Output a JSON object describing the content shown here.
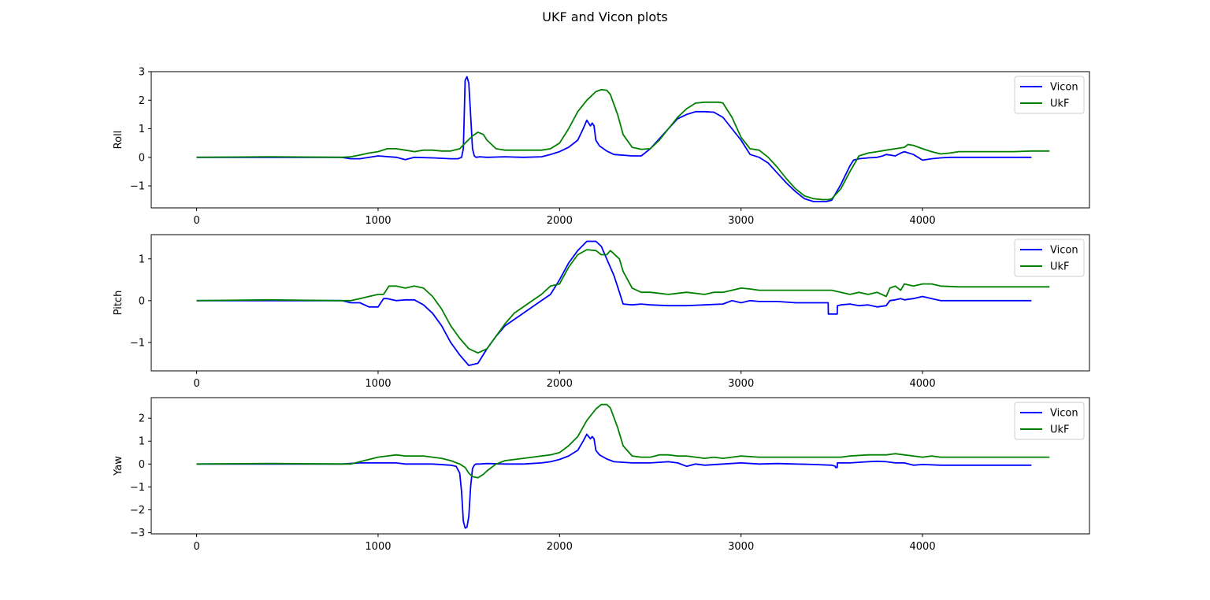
{
  "figure": {
    "title": "UKF and Vicon plots",
    "colors": {
      "Vicon": "#0000ff",
      "UkF": "#008000"
    }
  },
  "chart_data": [
    {
      "type": "line",
      "ylabel": "Roll",
      "xlim": [
        -250,
        4920
      ],
      "ylim": [
        -1.77,
        3.0
      ],
      "xticks": [
        "0",
        "1000",
        "2000",
        "3000",
        "4000"
      ],
      "yticks": [
        "−1",
        "0",
        "1",
        "2",
        "3"
      ],
      "legend": {
        "position": "upper right",
        "entries": [
          "Vicon",
          "UkF"
        ]
      },
      "series": [
        {
          "name": "Vicon",
          "color": "#0000ff",
          "x": [
            0,
            400,
            800,
            850,
            900,
            1000,
            1100,
            1150,
            1200,
            1300,
            1400,
            1440,
            1460,
            1470,
            1480,
            1490,
            1500,
            1510,
            1520,
            1530,
            1540,
            1560,
            1600,
            1700,
            1800,
            1900,
            1950,
            2000,
            2050,
            2100,
            2130,
            2150,
            2170,
            2180,
            2190,
            2200,
            2220,
            2260,
            2300,
            2400,
            2450,
            2500,
            2550,
            2600,
            2650,
            2700,
            2750,
            2800,
            2850,
            2900,
            2950,
            3000,
            3050,
            3100,
            3150,
            3200,
            3250,
            3300,
            3350,
            3400,
            3450,
            3470,
            3500,
            3550,
            3600,
            3620,
            3650,
            3700,
            3750,
            3780,
            3800,
            3850,
            3880,
            3900,
            3950,
            4000,
            4050,
            4100,
            4150,
            4200,
            4300,
            4400,
            4500,
            4600
          ],
          "y": [
            0,
            0,
            0,
            -0.05,
            -0.05,
            0.05,
            0,
            -0.08,
            0,
            -0.02,
            -0.05,
            -0.05,
            0,
            0.3,
            2.7,
            2.82,
            2.6,
            1.5,
            0.3,
            0.05,
            0,
            0.02,
            0,
            0.02,
            0,
            0.02,
            0.1,
            0.2,
            0.35,
            0.6,
            1.0,
            1.3,
            1.1,
            1.2,
            1.1,
            0.6,
            0.4,
            0.22,
            0.1,
            0.05,
            0.05,
            0.3,
            0.65,
            1.0,
            1.35,
            1.5,
            1.6,
            1.6,
            1.58,
            1.4,
            1.0,
            0.6,
            0.1,
            0.0,
            -0.2,
            -0.55,
            -0.9,
            -1.2,
            -1.45,
            -1.55,
            -1.55,
            -1.55,
            -1.5,
            -0.95,
            -0.3,
            -0.1,
            -0.05,
            -0.02,
            0.0,
            0.05,
            0.1,
            0.05,
            0.15,
            0.2,
            0.1,
            -0.1,
            -0.05,
            -0.02,
            0,
            0,
            0,
            0,
            0,
            0
          ]
        },
        {
          "name": "UkF",
          "color": "#008000",
          "x": [
            0,
            400,
            800,
            850,
            900,
            950,
            1000,
            1050,
            1100,
            1150,
            1200,
            1250,
            1300,
            1350,
            1400,
            1450,
            1480,
            1520,
            1550,
            1580,
            1600,
            1650,
            1700,
            1800,
            1900,
            1950,
            2000,
            2050,
            2100,
            2150,
            2200,
            2230,
            2260,
            2280,
            2320,
            2350,
            2400,
            2450,
            2500,
            2550,
            2600,
            2650,
            2700,
            2750,
            2800,
            2850,
            2880,
            2900,
            2950,
            3000,
            3050,
            3100,
            3150,
            3200,
            3250,
            3300,
            3350,
            3400,
            3450,
            3480,
            3500,
            3550,
            3600,
            3650,
            3700,
            3750,
            3800,
            3850,
            3900,
            3920,
            3950,
            4000,
            4050,
            4100,
            4150,
            4200,
            4300,
            4400,
            4500,
            4600,
            4700
          ],
          "y": [
            0,
            0.02,
            0,
            0.02,
            0.08,
            0.15,
            0.2,
            0.3,
            0.3,
            0.25,
            0.2,
            0.25,
            0.25,
            0.22,
            0.22,
            0.3,
            0.5,
            0.75,
            0.88,
            0.8,
            0.6,
            0.3,
            0.25,
            0.25,
            0.25,
            0.3,
            0.5,
            1.0,
            1.6,
            2.0,
            2.3,
            2.37,
            2.35,
            2.2,
            1.5,
            0.8,
            0.35,
            0.28,
            0.3,
            0.6,
            1.0,
            1.4,
            1.7,
            1.9,
            1.93,
            1.93,
            1.93,
            1.9,
            1.4,
            0.7,
            0.3,
            0.25,
            0.0,
            -0.35,
            -0.75,
            -1.1,
            -1.35,
            -1.45,
            -1.48,
            -1.48,
            -1.45,
            -1.1,
            -0.5,
            0.05,
            0.15,
            0.2,
            0.25,
            0.3,
            0.35,
            0.45,
            0.42,
            0.3,
            0.2,
            0.12,
            0.15,
            0.2,
            0.2,
            0.2,
            0.2,
            0.22,
            0.22
          ]
        }
      ]
    },
    {
      "type": "line",
      "ylabel": "Pitch",
      "xlim": [
        -250,
        4920
      ],
      "ylim": [
        -1.68,
        1.58
      ],
      "xticks": [
        "0",
        "1000",
        "2000",
        "3000",
        "4000"
      ],
      "yticks": [
        "−1",
        "0",
        "1"
      ],
      "legend": {
        "position": "upper right",
        "entries": [
          "Vicon",
          "UkF"
        ]
      },
      "series": [
        {
          "name": "Vicon",
          "color": "#0000ff",
          "x": [
            0,
            400,
            800,
            850,
            900,
            950,
            1000,
            1030,
            1050,
            1100,
            1150,
            1200,
            1250,
            1300,
            1350,
            1400,
            1450,
            1500,
            1550,
            1600,
            1650,
            1700,
            1750,
            1800,
            1850,
            1900,
            1950,
            2000,
            2050,
            2100,
            2150,
            2200,
            2230,
            2260,
            2300,
            2330,
            2350,
            2400,
            2450,
            2500,
            2600,
            2700,
            2800,
            2900,
            2950,
            3000,
            3050,
            3100,
            3200,
            3300,
            3400,
            3480,
            3481,
            3500,
            3530,
            3531,
            3550,
            3600,
            3650,
            3700,
            3750,
            3800,
            3820,
            3850,
            3880,
            3900,
            3950,
            4000,
            4050,
            4100,
            4200,
            4300,
            4400,
            4500,
            4600
          ],
          "y": [
            0,
            0,
            0,
            -0.05,
            -0.05,
            -0.15,
            -0.15,
            0.05,
            0.05,
            0,
            0.02,
            0.02,
            -0.1,
            -0.3,
            -0.6,
            -1.0,
            -1.3,
            -1.55,
            -1.5,
            -1.15,
            -0.85,
            -0.6,
            -0.45,
            -0.3,
            -0.15,
            0.0,
            0.15,
            0.5,
            0.9,
            1.2,
            1.42,
            1.42,
            1.3,
            1.0,
            0.6,
            0.2,
            -0.08,
            -0.1,
            -0.08,
            -0.1,
            -0.12,
            -0.12,
            -0.1,
            -0.08,
            0.0,
            -0.05,
            0.0,
            -0.02,
            -0.02,
            -0.05,
            -0.05,
            -0.05,
            -0.32,
            -0.32,
            -0.32,
            -0.12,
            -0.1,
            -0.08,
            -0.12,
            -0.1,
            -0.15,
            -0.12,
            0.0,
            0.02,
            0.05,
            0.02,
            0.05,
            0.1,
            0.05,
            0.0,
            0,
            0,
            0,
            0,
            0
          ]
        },
        {
          "name": "UkF",
          "color": "#008000",
          "x": [
            0,
            400,
            800,
            850,
            900,
            950,
            1000,
            1030,
            1060,
            1100,
            1150,
            1200,
            1250,
            1300,
            1350,
            1400,
            1450,
            1500,
            1550,
            1600,
            1650,
            1700,
            1750,
            1800,
            1850,
            1900,
            1950,
            2000,
            2050,
            2100,
            2150,
            2200,
            2230,
            2260,
            2280,
            2330,
            2350,
            2400,
            2450,
            2500,
            2600,
            2700,
            2800,
            2850,
            2900,
            2950,
            3000,
            3050,
            3100,
            3200,
            3300,
            3400,
            3500,
            3550,
            3600,
            3650,
            3700,
            3750,
            3800,
            3820,
            3850,
            3880,
            3900,
            3950,
            4000,
            4050,
            4100,
            4200,
            4300,
            4400,
            4500,
            4600,
            4700
          ],
          "y": [
            0,
            0.02,
            0,
            0.0,
            0.05,
            0.1,
            0.15,
            0.15,
            0.35,
            0.35,
            0.3,
            0.35,
            0.3,
            0.1,
            -0.2,
            -0.6,
            -0.9,
            -1.15,
            -1.25,
            -1.15,
            -0.85,
            -0.55,
            -0.3,
            -0.15,
            0.0,
            0.15,
            0.35,
            0.4,
            0.8,
            1.1,
            1.22,
            1.2,
            1.1,
            1.1,
            1.2,
            1.0,
            0.7,
            0.3,
            0.2,
            0.2,
            0.15,
            0.2,
            0.15,
            0.2,
            0.2,
            0.25,
            0.3,
            0.28,
            0.25,
            0.25,
            0.25,
            0.25,
            0.25,
            0.2,
            0.15,
            0.2,
            0.15,
            0.2,
            0.1,
            0.3,
            0.35,
            0.25,
            0.4,
            0.35,
            0.4,
            0.4,
            0.35,
            0.33,
            0.33,
            0.33,
            0.33,
            0.33,
            0.33
          ]
        }
      ]
    },
    {
      "type": "line",
      "ylabel": "Yaw",
      "xlim": [
        -250,
        4920
      ],
      "ylim": [
        -3.05,
        2.9
      ],
      "xticks": [
        "0",
        "1000",
        "2000",
        "3000",
        "4000"
      ],
      "yticks": [
        "−3",
        "−2",
        "−1",
        "0",
        "1",
        "2"
      ],
      "legend": {
        "position": "upper right",
        "entries": [
          "Vicon",
          "UkF"
        ]
      },
      "series": [
        {
          "name": "Vicon",
          "color": "#0000ff",
          "x": [
            0,
            400,
            800,
            900,
            1000,
            1100,
            1150,
            1200,
            1300,
            1400,
            1430,
            1450,
            1460,
            1470,
            1480,
            1490,
            1500,
            1510,
            1520,
            1530,
            1540,
            1560,
            1600,
            1700,
            1800,
            1900,
            1950,
            2000,
            2050,
            2100,
            2130,
            2150,
            2170,
            2180,
            2190,
            2200,
            2220,
            2260,
            2300,
            2400,
            2500,
            2600,
            2650,
            2700,
            2750,
            2800,
            2900,
            3000,
            3100,
            3200,
            3300,
            3400,
            3500,
            3520,
            3521,
            3530,
            3531,
            3550,
            3600,
            3700,
            3750,
            3800,
            3850,
            3900,
            3950,
            4000,
            4100,
            4200,
            4300,
            4400,
            4500,
            4600
          ],
          "y": [
            0,
            0,
            0,
            0.05,
            0.05,
            0.05,
            0.0,
            0.0,
            0.0,
            -0.05,
            -0.1,
            -0.4,
            -1.2,
            -2.5,
            -2.8,
            -2.75,
            -2.3,
            -1.0,
            -0.2,
            -0.05,
            0.0,
            0.0,
            0.02,
            0.0,
            0.0,
            0.05,
            0.1,
            0.2,
            0.35,
            0.6,
            1.0,
            1.3,
            1.1,
            1.2,
            1.1,
            0.6,
            0.4,
            0.22,
            0.1,
            0.05,
            0.05,
            0.1,
            0.05,
            -0.1,
            0.0,
            -0.05,
            0.0,
            0.05,
            0.0,
            0.02,
            0.0,
            -0.02,
            -0.05,
            -0.1,
            -0.15,
            -0.15,
            0.05,
            0.05,
            0.05,
            0.1,
            0.12,
            0.1,
            0.05,
            0.05,
            -0.05,
            -0.02,
            -0.05,
            -0.05,
            -0.05,
            -0.05,
            -0.05,
            -0.05
          ]
        },
        {
          "name": "UkF",
          "color": "#008000",
          "x": [
            0,
            400,
            800,
            850,
            900,
            950,
            1000,
            1050,
            1100,
            1150,
            1200,
            1250,
            1300,
            1350,
            1400,
            1450,
            1480,
            1500,
            1520,
            1550,
            1580,
            1600,
            1650,
            1700,
            1800,
            1900,
            1950,
            2000,
            2050,
            2100,
            2150,
            2200,
            2230,
            2260,
            2280,
            2320,
            2350,
            2400,
            2450,
            2500,
            2550,
            2600,
            2650,
            2700,
            2750,
            2800,
            2850,
            2900,
            2950,
            3000,
            3100,
            3200,
            3300,
            3400,
            3500,
            3550,
            3600,
            3700,
            3800,
            3850,
            3900,
            3950,
            4000,
            4050,
            4100,
            4200,
            4300,
            4400,
            4500,
            4600,
            4700
          ],
          "y": [
            0,
            0.02,
            0,
            0.0,
            0.1,
            0.2,
            0.3,
            0.35,
            0.4,
            0.35,
            0.35,
            0.35,
            0.3,
            0.25,
            0.15,
            0.0,
            -0.15,
            -0.4,
            -0.55,
            -0.6,
            -0.45,
            -0.3,
            0.0,
            0.15,
            0.25,
            0.35,
            0.4,
            0.5,
            0.8,
            1.2,
            1.9,
            2.4,
            2.6,
            2.6,
            2.45,
            1.6,
            0.8,
            0.35,
            0.3,
            0.3,
            0.4,
            0.4,
            0.35,
            0.35,
            0.3,
            0.25,
            0.3,
            0.25,
            0.3,
            0.35,
            0.3,
            0.3,
            0.3,
            0.3,
            0.3,
            0.3,
            0.35,
            0.4,
            0.4,
            0.45,
            0.4,
            0.35,
            0.3,
            0.35,
            0.3,
            0.3,
            0.3,
            0.3,
            0.3,
            0.3,
            0.3
          ]
        }
      ]
    }
  ]
}
